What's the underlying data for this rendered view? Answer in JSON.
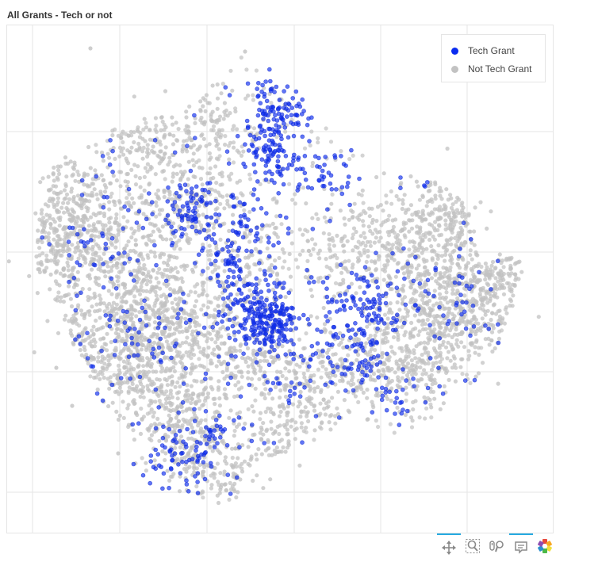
{
  "title": "All Grants - Tech or not",
  "legend": {
    "items": [
      {
        "label": "Tech Grant",
        "color": "#0a2bf0"
      },
      {
        "label": "Not Tech Grant",
        "color": "#c2c2c2"
      }
    ],
    "position": "top-right"
  },
  "toolbar": {
    "tools": [
      {
        "icon": "pan-icon",
        "active": true
      },
      {
        "icon": "box-zoom-icon",
        "active": false
      },
      {
        "icon": "wheel-zoom-icon",
        "active": false
      },
      {
        "icon": "hover-icon",
        "active": true
      },
      {
        "icon": "bokeh-logo-icon",
        "active": false
      }
    ]
  },
  "chart_data": {
    "type": "scatter",
    "title": "All Grants - Tech or not",
    "xlabel": "",
    "ylabel": "",
    "grid": true,
    "axes_visible": false,
    "series": [
      {
        "name": "Tech Grant",
        "color": "#0a2bf0"
      },
      {
        "name": "Not Tech Grant",
        "color": "#c2c2c2"
      }
    ]
  }
}
